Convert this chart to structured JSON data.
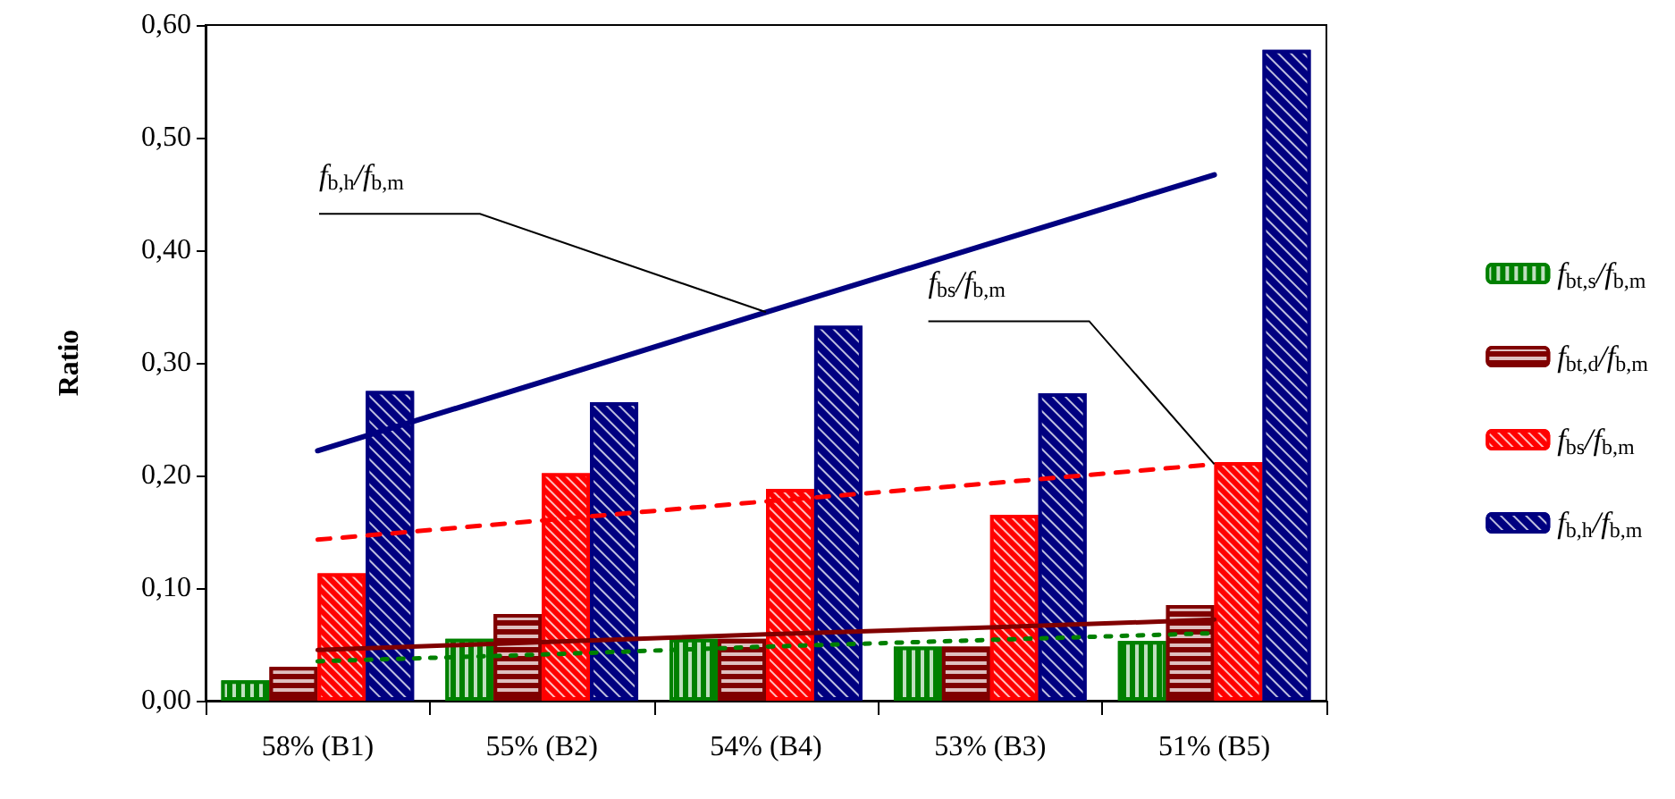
{
  "chart_data": {
    "type": "bar",
    "ylabel": "Ratio",
    "categories": [
      "58% (B1)",
      "55% (B2)",
      "54% (B4)",
      "53% (B3)",
      "51% (B5)"
    ],
    "series": [
      {
        "name": "f$_{bt,s}$/f$_{b,m}$",
        "color": "#008000",
        "values": [
          0.018,
          0.055,
          0.055,
          0.048,
          0.053
        ]
      },
      {
        "name": "f$_{bt,d}$/f$_{b,m}$",
        "color": "#800000",
        "values": [
          0.03,
          0.077,
          0.055,
          0.048,
          0.085
        ]
      },
      {
        "name": "f$_{bs}$/f$_{b,m}$",
        "color": "#ff0000",
        "values": [
          0.113,
          0.202,
          0.188,
          0.165,
          0.212
        ]
      },
      {
        "name": "f$_{b,h}$/f$_{b,m}$",
        "color": "#000080",
        "values": [
          0.275,
          0.265,
          0.333,
          0.273,
          0.578
        ]
      },
      {
        "type": "line",
        "color": "#008000",
        "line_style": "dotted",
        "values": [
          0.035,
          0.041,
          0.048,
          0.054,
          0.06
        ]
      },
      {
        "type": "line",
        "color": "#800000",
        "line_style": "solid",
        "values": [
          0.045,
          0.052,
          0.059,
          0.065,
          0.072
        ]
      },
      {
        "type": "line",
        "color": "#ff0000",
        "line_style": "dashed",
        "values": [
          0.143,
          0.16,
          0.177,
          0.193,
          0.21
        ]
      },
      {
        "type": "line",
        "color": "#000080",
        "line_style": "solid",
        "values": [
          0.222,
          0.283,
          0.345,
          0.406,
          0.467
        ]
      }
    ],
    "ylim": [
      0,
      0.6
    ],
    "yticks": [
      {
        "value": 0,
        "label": "0,00"
      },
      {
        "value": 0.1,
        "label": "0,10"
      },
      {
        "value": 0.2,
        "label": "0,20"
      },
      {
        "value": 0.3,
        "label": "0,30"
      },
      {
        "value": 0.4,
        "label": "0,40"
      },
      {
        "value": 0.5,
        "label": "0,50"
      },
      {
        "value": 0.6,
        "label": "0,60"
      }
    ],
    "annotations": [
      {
        "text": "f$_{b,h}$/f$_{b,m}$",
        "x": "54% (B4)",
        "y": 0.345
      },
      {
        "text": "f$_{bs}$/f$_{b,m}$",
        "x": "51% (B5)",
        "y": 0.21
      }
    ],
    "grid": false,
    "legend": "right",
    "marker": "none"
  }
}
